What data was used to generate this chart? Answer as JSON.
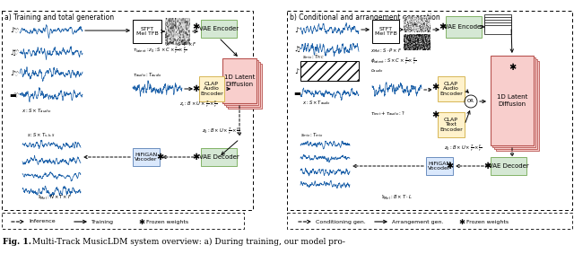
{
  "title_bold": "Fig. 1.",
  "title_normal": " Multi-Track MusicLDM system overview: a) During training, our model pro-",
  "fig_width": 6.4,
  "fig_height": 2.83,
  "background_color": "#ffffff",
  "section_a_title": "a) Training and total generation",
  "section_b_title": "b) Conditional and arrangement generation"
}
